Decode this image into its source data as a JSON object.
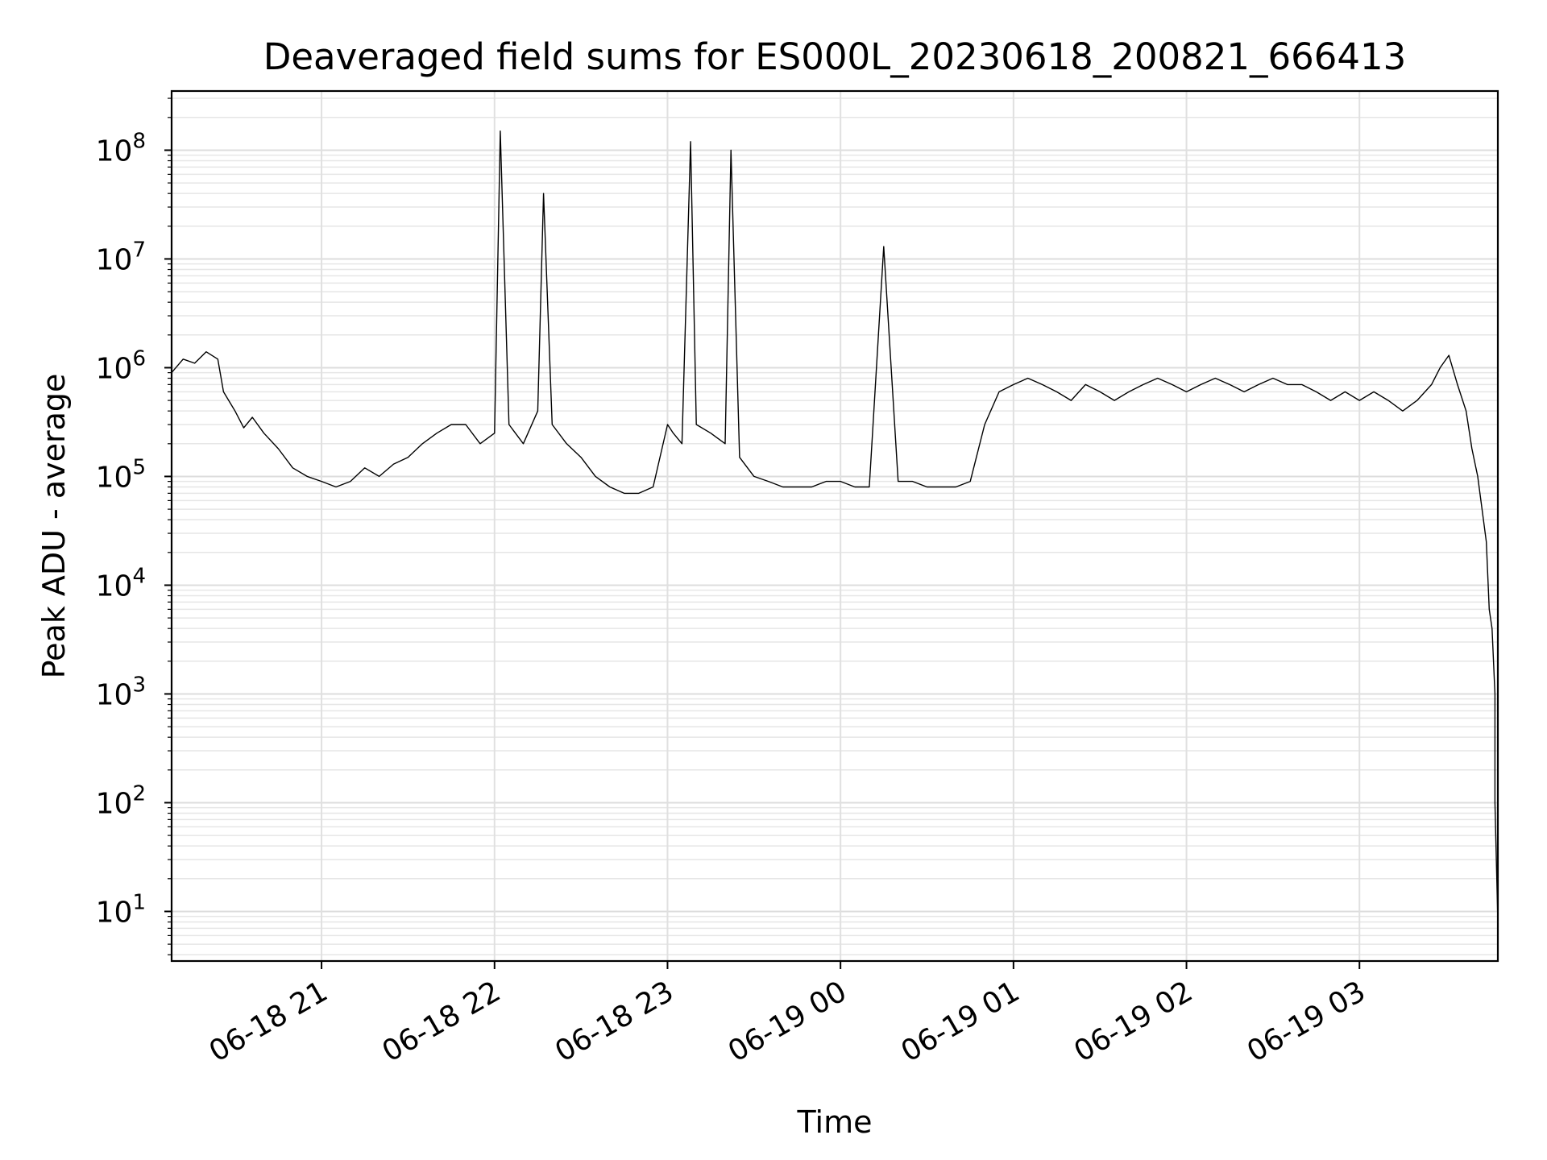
{
  "chart_data": {
    "type": "line",
    "title": "Deaveraged field sums for ES000L_20230618_200821_666413",
    "xlabel": "Time",
    "ylabel": "Peak ADU - average",
    "y_scale": "log",
    "ylim": [
      3.5,
      350000000
    ],
    "xlim": [
      "2023-06-18 20:08",
      "2023-06-19 03:48"
    ],
    "x_tick_labels": [
      "06-18 21",
      "06-18 22",
      "06-18 23",
      "06-19 00",
      "06-19 01",
      "06-19 02",
      "06-19 03"
    ],
    "x_ticks": [
      "2023-06-18 21:00",
      "2023-06-18 22:00",
      "2023-06-18 23:00",
      "2023-06-19 00:00",
      "2023-06-19 01:00",
      "2023-06-19 02:00",
      "2023-06-19 03:00"
    ],
    "y_tick_exponents": [
      "1",
      "2",
      "3",
      "4",
      "5",
      "6",
      "7",
      "8"
    ],
    "y_tick_base": "10",
    "grid": true,
    "series": [
      {
        "color": "#000000",
        "x": [
          "2023-06-18 20:08",
          "2023-06-18 20:12",
          "2023-06-18 20:16",
          "2023-06-18 20:20",
          "2023-06-18 20:24",
          "2023-06-18 20:26",
          "2023-06-18 20:30",
          "2023-06-18 20:33",
          "2023-06-18 20:36",
          "2023-06-18 20:40",
          "2023-06-18 20:45",
          "2023-06-18 20:50",
          "2023-06-18 20:55",
          "2023-06-18 21:00",
          "2023-06-18 21:05",
          "2023-06-18 21:10",
          "2023-06-18 21:15",
          "2023-06-18 21:20",
          "2023-06-18 21:25",
          "2023-06-18 21:30",
          "2023-06-18 21:35",
          "2023-06-18 21:40",
          "2023-06-18 21:45",
          "2023-06-18 21:50",
          "2023-06-18 21:55",
          "2023-06-18 22:00",
          "2023-06-18 22:02",
          "2023-06-18 22:05",
          "2023-06-18 22:10",
          "2023-06-18 22:15",
          "2023-06-18 22:17",
          "2023-06-18 22:20",
          "2023-06-18 22:25",
          "2023-06-18 22:30",
          "2023-06-18 22:35",
          "2023-06-18 22:40",
          "2023-06-18 22:45",
          "2023-06-18 22:50",
          "2023-06-18 22:55",
          "2023-06-18 23:00",
          "2023-06-18 23:02",
          "2023-06-18 23:05",
          "2023-06-18 23:08",
          "2023-06-18 23:10",
          "2023-06-18 23:15",
          "2023-06-18 23:20",
          "2023-06-18 23:22",
          "2023-06-18 23:25",
          "2023-06-18 23:30",
          "2023-06-18 23:35",
          "2023-06-18 23:40",
          "2023-06-18 23:45",
          "2023-06-18 23:50",
          "2023-06-18 23:55",
          "2023-06-19 00:00",
          "2023-06-19 00:05",
          "2023-06-19 00:10",
          "2023-06-19 00:15",
          "2023-06-19 00:20",
          "2023-06-19 00:25",
          "2023-06-19 00:30",
          "2023-06-19 00:35",
          "2023-06-19 00:40",
          "2023-06-19 00:45",
          "2023-06-19 00:50",
          "2023-06-19 00:55",
          "2023-06-19 01:00",
          "2023-06-19 01:05",
          "2023-06-19 01:10",
          "2023-06-19 01:15",
          "2023-06-19 01:20",
          "2023-06-19 01:25",
          "2023-06-19 01:30",
          "2023-06-19 01:35",
          "2023-06-19 01:40",
          "2023-06-19 01:45",
          "2023-06-19 01:50",
          "2023-06-19 01:55",
          "2023-06-19 02:00",
          "2023-06-19 02:05",
          "2023-06-19 02:10",
          "2023-06-19 02:15",
          "2023-06-19 02:20",
          "2023-06-19 02:25",
          "2023-06-19 02:30",
          "2023-06-19 02:35",
          "2023-06-19 02:40",
          "2023-06-19 02:45",
          "2023-06-19 02:50",
          "2023-06-19 02:55",
          "2023-06-19 03:00",
          "2023-06-19 03:05",
          "2023-06-19 03:10",
          "2023-06-19 03:15",
          "2023-06-19 03:20",
          "2023-06-19 03:25",
          "2023-06-19 03:28",
          "2023-06-19 03:31",
          "2023-06-19 03:34",
          "2023-06-19 03:37",
          "2023-06-19 03:39",
          "2023-06-19 03:41",
          "2023-06-19 03:43",
          "2023-06-19 03:44",
          "2023-06-19 03:45",
          "2023-06-19 03:46",
          "2023-06-19 03:47",
          "2023-06-19 03:47",
          "2023-06-19 03:48"
        ],
        "y": [
          900000,
          1200000,
          1100000,
          1400000,
          1200000,
          600000,
          400000,
          280000,
          350000,
          250000,
          180000,
          120000,
          100000,
          90000,
          80000,
          90000,
          120000,
          100000,
          130000,
          150000,
          200000,
          250000,
          300000,
          300000,
          200000,
          250000,
          150000000,
          300000,
          200000,
          400000,
          40000000,
          300000,
          200000,
          150000,
          100000,
          80000,
          70000,
          70000,
          80000,
          300000,
          250000,
          200000,
          120000000,
          300000,
          250000,
          200000,
          100000000,
          150000,
          100000,
          90000,
          80000,
          80000,
          80000,
          90000,
          90000,
          80000,
          80000,
          13000000,
          90000,
          90000,
          80000,
          80000,
          80000,
          90000,
          300000,
          600000,
          700000,
          800000,
          700000,
          600000,
          500000,
          700000,
          600000,
          500000,
          600000,
          700000,
          800000,
          700000,
          600000,
          700000,
          800000,
          700000,
          600000,
          700000,
          800000,
          700000,
          700000,
          600000,
          500000,
          600000,
          500000,
          600000,
          500000,
          400000,
          500000,
          700000,
          1000000,
          1300000,
          700000,
          400000,
          180000,
          100000,
          40000,
          25000,
          6000,
          4000,
          1000,
          100,
          8
        ]
      }
    ]
  }
}
